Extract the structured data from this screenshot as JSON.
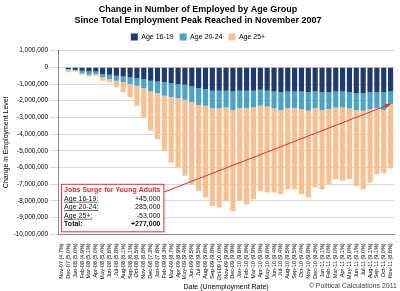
{
  "chart_data": {
    "type": "bar",
    "title": [
      "Change in Number of Employed by Age Group",
      "Since Total Employment Peak Reached in November 2007"
    ],
    "x_label": "Date (Unemployment Rate)",
    "y_label": "Change in Employment Level",
    "credit": "© Political Calculations 2011",
    "stacked": true,
    "grid": true,
    "legend": "top",
    "categories": [
      "Nov-07 (4.7%)",
      "Dec-07 (5.0%)",
      "Jan-08 (5.0%)",
      "Feb-08 (4.9%)",
      "Mar-08 (5.1%)",
      "Apr-08 (5.0%)",
      "May-08 (5.4%)",
      "Jun-08 (5.6%)",
      "Jul-08 (5.8%)",
      "Aug-08 (6.1%)",
      "Sep-08 (6.1%)",
      "Oct-08 (6.5%)",
      "Nov-08 (6.8%)",
      "Dec-08 (7.3%)",
      "Jan-09 (7.8%)",
      "Feb-09 (8.3%)",
      "Mar-09 (8.7%)",
      "Apr-09 (8.9%)",
      "May-09 (9.4%)",
      "Jun-09 (9.5%)",
      "Jul-09 (9.5%)",
      "Aug-09 (9.6%)",
      "Sep-09 (9.8%)",
      "Oct-09 (10.0%)",
      "Nov-09 (9.9%)",
      "Dec-09 (9.9%)",
      "Jan-10 (9.8%)",
      "Feb-10 (9.8%)",
      "Mar-10 (9.9%)",
      "Apr-10 (9.9%)",
      "May-10 (9.6%)",
      "Jun-10 (9.4%)",
      "Jul-10 (9.4%)",
      "Aug-10 (9.5%)",
      "Sep-10 (9.5%)",
      "Oct-10 (9.4%)",
      "Nov-10 (9.8%)",
      "Dec-10 (9.3%)",
      "Jan-11 (9.1%)",
      "Feb-11 (9.0%)",
      "Mar-11 (9.0%)",
      "Apr-11 (9.1%)",
      "May-11 (9.0%)",
      "Jun-11 (9.1%)",
      "Jul-11 (9.0%)",
      "Aug-11 (9.1%)",
      "Sep-11 (9.1%)",
      "Oct-11 (9.0%)",
      "Nov-11 (8.6%)"
    ],
    "series": [
      {
        "name": "Age 16-19",
        "color": "#1f3b6e",
        "values": [
          0,
          -100000,
          -150000,
          -200000,
          -250000,
          -250000,
          -400000,
          -450000,
          -500000,
          -550000,
          -600000,
          -650000,
          -700000,
          -800000,
          -850000,
          -900000,
          -950000,
          -1000000,
          -1050000,
          -1150000,
          -1250000,
          -1300000,
          -1400000,
          -1400000,
          -1400000,
          -1450000,
          -1400000,
          -1400000,
          -1400000,
          -1350000,
          -1400000,
          -1450000,
          -1500000,
          -1450000,
          -1450000,
          -1450000,
          -1500000,
          -1450000,
          -1500000,
          -1500000,
          -1450000,
          -1450000,
          -1500000,
          -1550000,
          -1550000,
          -1500000,
          -1500000,
          -1500000,
          -1450000
        ]
      },
      {
        "name": "Age 20-24",
        "color": "#4aa3c8",
        "values": [
          0,
          -50000,
          -50000,
          -150000,
          -200000,
          -150000,
          -200000,
          -250000,
          -300000,
          -350000,
          -400000,
          -450000,
          -550000,
          -650000,
          -700000,
          -800000,
          -850000,
          -850000,
          -900000,
          -950000,
          -1000000,
          -1000000,
          -1050000,
          -1050000,
          -1000000,
          -1100000,
          -1050000,
          -1050000,
          -1000000,
          -950000,
          -950000,
          -1000000,
          -1050000,
          -1000000,
          -1000000,
          -1050000,
          -1100000,
          -1000000,
          -1050000,
          -1000000,
          -950000,
          -950000,
          -950000,
          -1000000,
          -1050000,
          -1000000,
          -950000,
          -1050000,
          -750000
        ]
      },
      {
        "name": "Age 25+",
        "color": "#fac08f",
        "values": [
          0,
          -150000,
          -50000,
          -100000,
          -100000,
          -100000,
          -200000,
          -200000,
          -400000,
          -600000,
          -800000,
          -1200000,
          -1750000,
          -2350000,
          -2750000,
          -3300000,
          -3900000,
          -4150000,
          -4550000,
          -4900000,
          -5150000,
          -5500000,
          -5850000,
          -5950000,
          -5600000,
          -6050000,
          -5550000,
          -5750000,
          -5500000,
          -5100000,
          -5150000,
          -5050000,
          -5050000,
          -4850000,
          -4850000,
          -5100000,
          -5200000,
          -4750000,
          -4750000,
          -4500000,
          -4300000,
          -4400000,
          -4250000,
          -4550000,
          -4700000,
          -4400000,
          -3950000,
          -3800000,
          -3850000
        ]
      }
    ],
    "ylim": [
      -10000000,
      1000000
    ],
    "yticks": [
      {
        "value": -10000000,
        "label": "-10,000,000"
      },
      {
        "value": -9000000,
        "label": "-9,000,000"
      },
      {
        "value": -8000000,
        "label": "-8,000,000"
      },
      {
        "value": -7000000,
        "label": "-7,000,000"
      },
      {
        "value": -6000000,
        "label": "-6,000,000"
      },
      {
        "value": -5000000,
        "label": "-5,000,000"
      },
      {
        "value": -4000000,
        "label": "-4,000,000"
      },
      {
        "value": -3000000,
        "label": "-3,000,000"
      },
      {
        "value": -2000000,
        "label": "-2,000,000"
      },
      {
        "value": -1000000,
        "label": "-1,000,000"
      },
      0,
      {
        "value": 1000000,
        "label": "1,000,000"
      }
    ],
    "annotation": {
      "title": "Jobs Surge for Young Adults",
      "rows": [
        [
          "Age 16-19:",
          "+45,000"
        ],
        [
          "Age 20-24:",
          "285,000"
        ],
        [
          "Age 25+:",
          "-53,000"
        ],
        [
          "Total:",
          "+277,000"
        ]
      ]
    }
  }
}
